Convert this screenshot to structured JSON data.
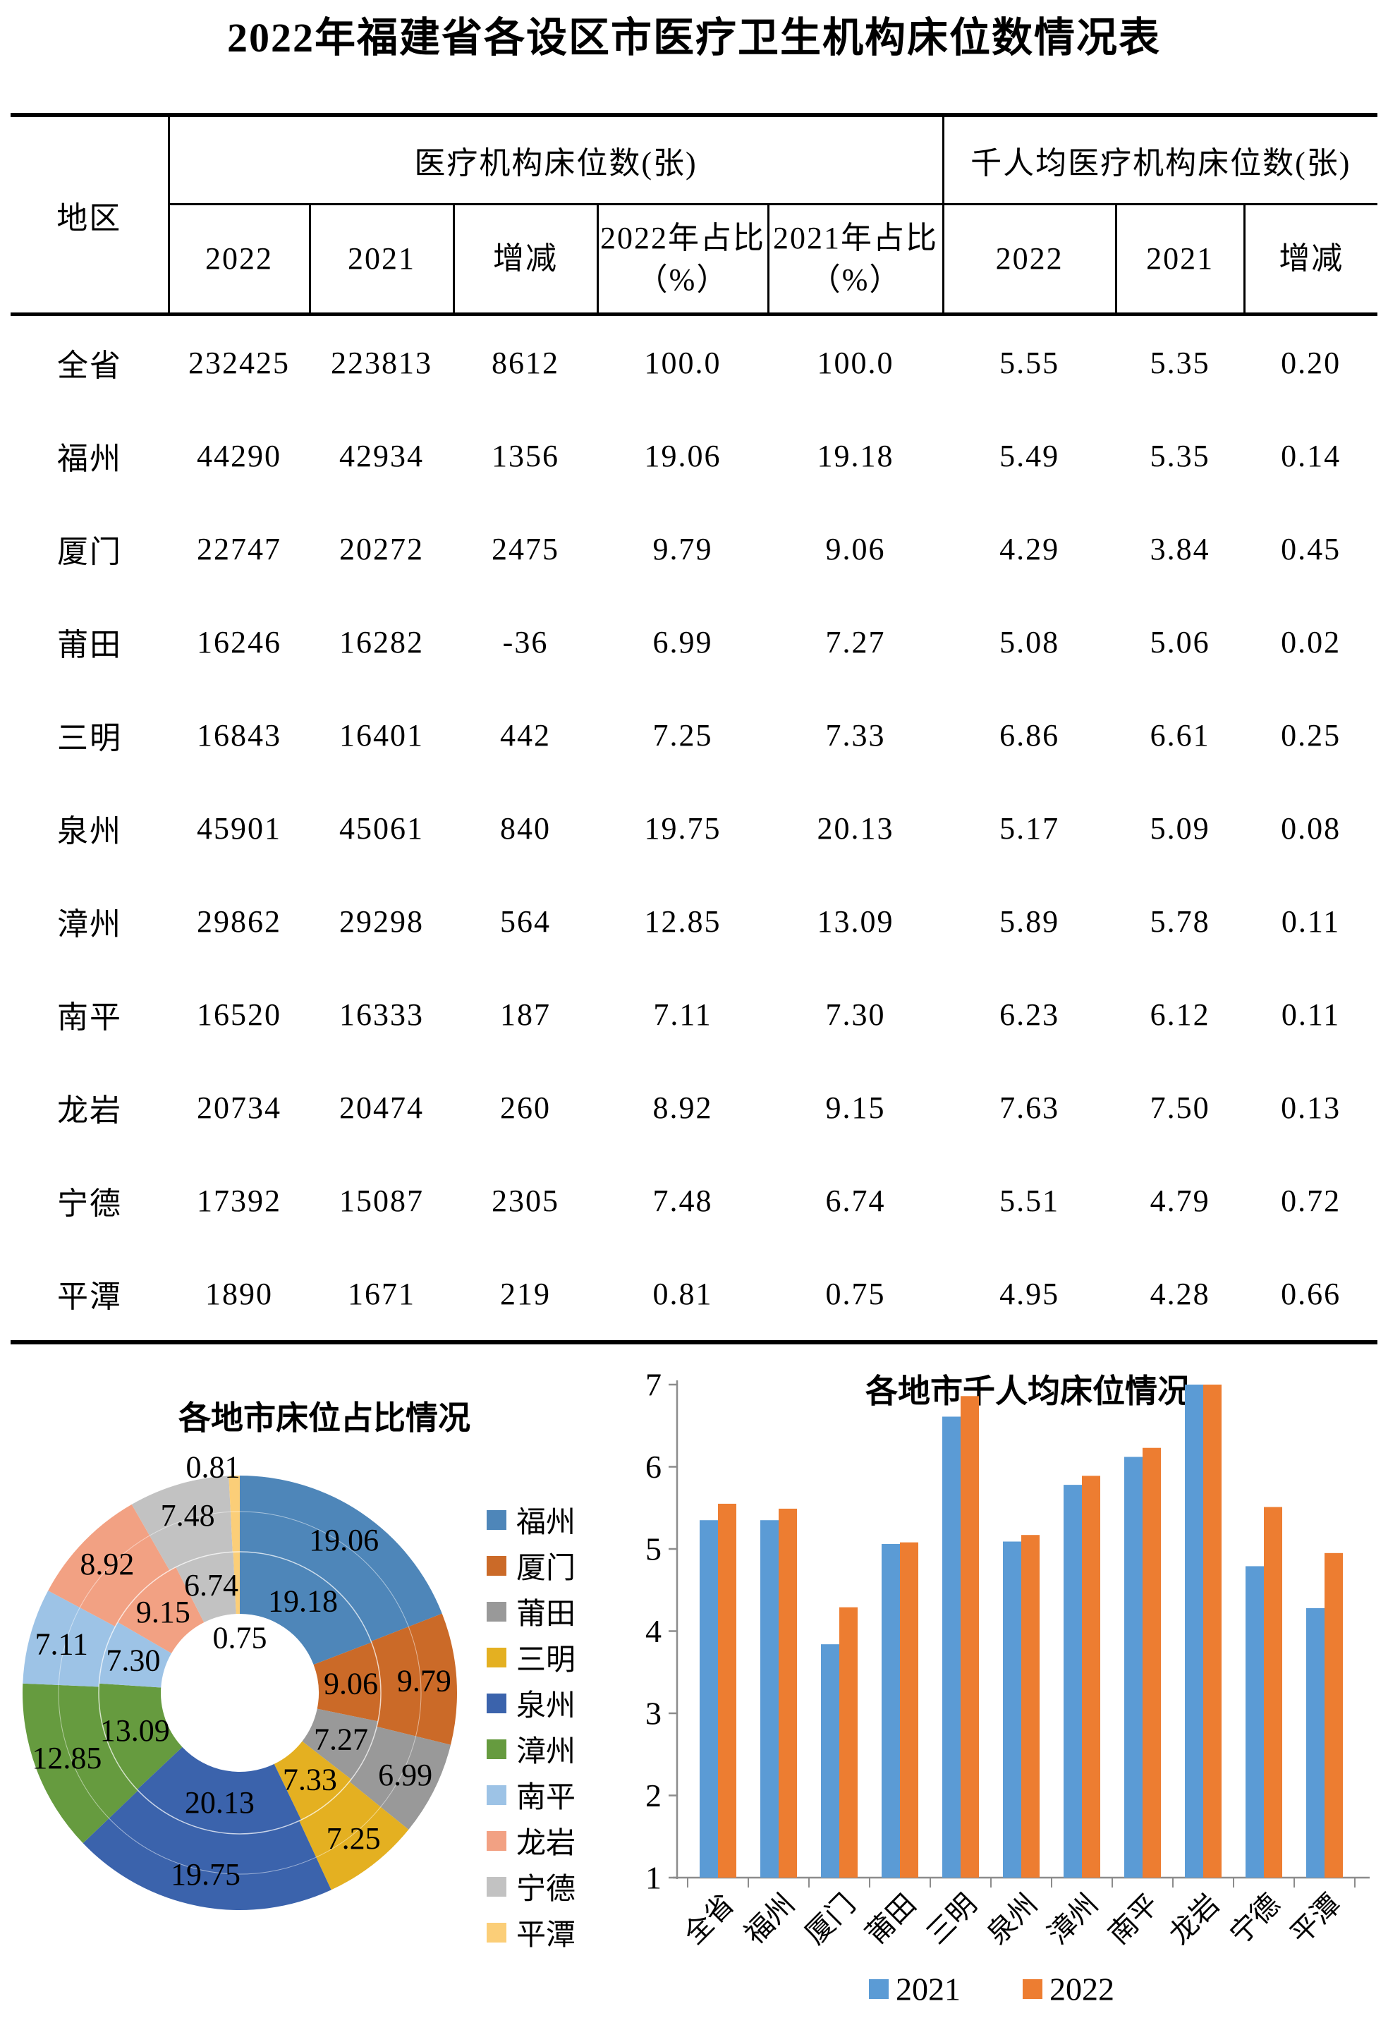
{
  "title": "2022年福建省各设区市医疗卫生机构床位数情况表",
  "table": {
    "region_header": "地区",
    "group1_header": "医疗机构床位数(张)",
    "group2_header": "千人均医疗机构床位数(张)",
    "sub1": [
      "2022",
      "2021",
      "增减",
      "2022年占比（%）",
      "2021年占比（%）"
    ],
    "sub2": [
      "2022",
      "2021",
      "增减"
    ],
    "rows": [
      {
        "region": "全省",
        "b22": "232425",
        "b21": "223813",
        "chg": "8612",
        "s22": "100.0",
        "s21": "100.0",
        "p22": "5.55",
        "p21": "5.35",
        "pchg": "0.20"
      },
      {
        "region": "福州",
        "b22": "44290",
        "b21": "42934",
        "chg": "1356",
        "s22": "19.06",
        "s21": "19.18",
        "p22": "5.49",
        "p21": "5.35",
        "pchg": "0.14"
      },
      {
        "region": "厦门",
        "b22": "22747",
        "b21": "20272",
        "chg": "2475",
        "s22": "9.79",
        "s21": "9.06",
        "p22": "4.29",
        "p21": "3.84",
        "pchg": "0.45"
      },
      {
        "region": "莆田",
        "b22": "16246",
        "b21": "16282",
        "chg": "-36",
        "s22": "6.99",
        "s21": "7.27",
        "p22": "5.08",
        "p21": "5.06",
        "pchg": "0.02"
      },
      {
        "region": "三明",
        "b22": "16843",
        "b21": "16401",
        "chg": "442",
        "s22": "7.25",
        "s21": "7.33",
        "p22": "6.86",
        "p21": "6.61",
        "pchg": "0.25"
      },
      {
        "region": "泉州",
        "b22": "45901",
        "b21": "45061",
        "chg": "840",
        "s22": "19.75",
        "s21": "20.13",
        "p22": "5.17",
        "p21": "5.09",
        "pchg": "0.08"
      },
      {
        "region": "漳州",
        "b22": "29862",
        "b21": "29298",
        "chg": "564",
        "s22": "12.85",
        "s21": "13.09",
        "p22": "5.89",
        "p21": "5.78",
        "pchg": "0.11"
      },
      {
        "region": "南平",
        "b22": "16520",
        "b21": "16333",
        "chg": "187",
        "s22": "7.11",
        "s21": "7.30",
        "p22": "6.23",
        "p21": "6.12",
        "pchg": "0.11"
      },
      {
        "region": "龙岩",
        "b22": "20734",
        "b21": "20474",
        "chg": "260",
        "s22": "8.92",
        "s21": "9.15",
        "p22": "7.63",
        "p21": "7.50",
        "pchg": "0.13"
      },
      {
        "region": "宁德",
        "b22": "17392",
        "b21": "15087",
        "chg": "2305",
        "s22": "7.48",
        "s21": "6.74",
        "p22": "5.51",
        "p21": "4.79",
        "pchg": "0.72"
      },
      {
        "region": "平潭",
        "b22": "1890",
        "b21": "1671",
        "chg": "219",
        "s22": "0.81",
        "s21": "0.75",
        "p22": "4.95",
        "p21": "4.28",
        "pchg": "0.66"
      }
    ]
  },
  "chart_data": [
    {
      "type": "pie",
      "subtype": "double-donut",
      "title": "各地市床位占比情况",
      "categories": [
        "福州",
        "厦门",
        "莆田",
        "三明",
        "泉州",
        "漳州",
        "南平",
        "龙岩",
        "宁德",
        "平潭"
      ],
      "series": [
        {
          "name": "2022-outer-ring",
          "values": [
            19.06,
            9.79,
            6.99,
            7.25,
            19.75,
            12.85,
            7.11,
            8.92,
            7.48,
            0.81
          ]
        },
        {
          "name": "2021-inner-ring",
          "values": [
            19.18,
            9.06,
            7.27,
            7.33,
            20.13,
            13.09,
            7.3,
            9.15,
            6.74,
            0.75
          ]
        }
      ],
      "colors": [
        "#4E86B9",
        "#CB6A28",
        "#999999",
        "#E4B021",
        "#3B63AC",
        "#669B3F",
        "#9DC3E6",
        "#F2A183",
        "#C2C2C2",
        "#FBCE78"
      ],
      "legend_position": "right",
      "grid": false
    },
    {
      "type": "bar",
      "title": "各地市千人均床位情况",
      "categories": [
        "全省",
        "福州",
        "厦门",
        "莆田",
        "三明",
        "泉州",
        "漳州",
        "南平",
        "龙岩",
        "宁德",
        "平潭"
      ],
      "series": [
        {
          "name": "2021",
          "color": "#5B9BD5",
          "values": [
            5.35,
            5.35,
            3.84,
            5.06,
            6.61,
            5.09,
            5.78,
            6.12,
            7.5,
            4.79,
            4.28
          ]
        },
        {
          "name": "2022",
          "color": "#ED7D31",
          "values": [
            5.55,
            5.49,
            4.29,
            5.08,
            6.86,
            5.17,
            5.89,
            6.23,
            7.63,
            5.51,
            4.95
          ]
        }
      ],
      "xlabel": "",
      "ylabel": "",
      "ylim": [
        1,
        7
      ],
      "yticks": [
        1,
        2,
        3,
        4,
        5,
        6,
        7
      ],
      "grid": false,
      "legend_position": "bottom",
      "axis_color": "#8C8C8C"
    }
  ]
}
